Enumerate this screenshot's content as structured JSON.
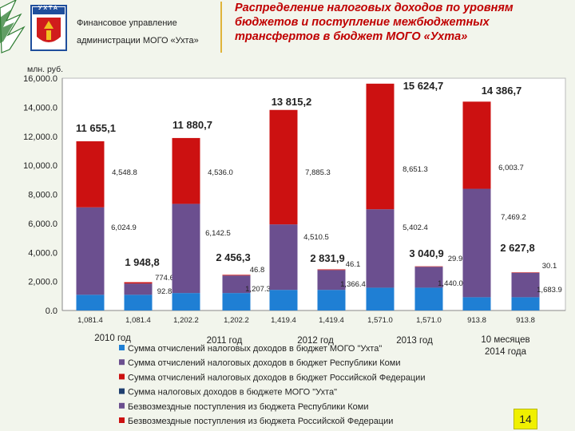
{
  "header": {
    "org_line1": "Финансовое управление",
    "org_line2": "администрации МОГО «Ухта»",
    "emblem_text": "УХТА",
    "title": "Распределение налоговых доходов по уровням бюджетов и поступление межбюджетных трансфертов в бюджет МОГО «Ухта»"
  },
  "page_number": "14",
  "chart_data": {
    "type": "bar",
    "ylabel": "млн. руб.",
    "ylim": [
      0,
      16000
    ],
    "yticks": [
      "0.0",
      "2,000.0",
      "4,000.0",
      "6,000.0",
      "8,000.0",
      "10,000.0",
      "12,000.0",
      "14,000.0",
      "16,000.0"
    ],
    "periods": [
      "2010 год",
      "2011 год",
      "2012 год",
      "2013 год",
      "10 месяцев 2014 года"
    ],
    "series": [
      {
        "name": "Сумма отчислений налоговых доходов в бюджет МОГО \"Ухта\"",
        "color": "#1f7fd4"
      },
      {
        "name": "Сумма отчислений налоговых доходов в бюджет Республики Коми",
        "color": "#6b4f8f"
      },
      {
        "name": "Сумма отчислений налоговых доходов в бюджет Российской Федерации",
        "color": "#cc1111"
      },
      {
        "name": "Сумма  налоговых доходов в бюджете  МОГО \"Ухта\"",
        "color": "#1f3f6f"
      },
      {
        "name": "Безвозмездные поступления из бюджета Республики Коми",
        "color": "#6b4f8f"
      },
      {
        "name": "Безвозмездные поступления из бюджета Российской Федерации",
        "color": "#cc1111"
      }
    ],
    "bars": [
      {
        "segments": [
          1081.4,
          6024.9,
          4548.8
        ],
        "total": "11 655,1",
        "seg_labels": [
          "1,081.4",
          "6,024.9",
          "4,548.8"
        ]
      },
      {
        "segments": [
          1081.4,
          774.6,
          92.8
        ],
        "total": "1 948,8",
        "seg_labels": [
          "1,081.4",
          "774.6",
          "92.8"
        ]
      },
      {
        "segments": [
          1202.2,
          6142.5,
          4536.0
        ],
        "total": "11 880,7",
        "seg_labels": [
          "1,202.2",
          "6,142.5",
          "4,536.0"
        ]
      },
      {
        "segments": [
          1202.2,
          1207.3,
          46.8
        ],
        "total": "2 456,3",
        "seg_labels": [
          "1,202.2",
          "1,207.3",
          "46.8"
        ]
      },
      {
        "segments": [
          1419.4,
          4510.5,
          7885.3
        ],
        "total": "13 815,2",
        "seg_labels": [
          "1,419.4",
          "4,510.5",
          "7,885.3"
        ]
      },
      {
        "segments": [
          1419.4,
          1366.4,
          46.1
        ],
        "total": "2 831,9",
        "seg_labels": [
          "1,419.4",
          "1,366.4",
          "46.1"
        ]
      },
      {
        "segments": [
          1571.0,
          5402.4,
          8651.3
        ],
        "total": "15 624,7",
        "seg_labels": [
          "1,571.0",
          "5,402.4",
          "8,651.3"
        ]
      },
      {
        "segments": [
          1571.0,
          1440.0,
          29.9
        ],
        "total": "3 040,9",
        "seg_labels": [
          "1,571.0",
          "1,440.0",
          "29.9"
        ]
      },
      {
        "segments": [
          913.8,
          7469.2,
          6003.7
        ],
        "total": "14 386,7",
        "seg_labels": [
          "913.8",
          "7,469.2",
          "6,003.7"
        ]
      },
      {
        "segments": [
          913.8,
          1683.9,
          30.1
        ],
        "total": "2 627,8",
        "seg_labels": [
          "913.8",
          "1,683.9",
          "30.1"
        ]
      }
    ]
  }
}
